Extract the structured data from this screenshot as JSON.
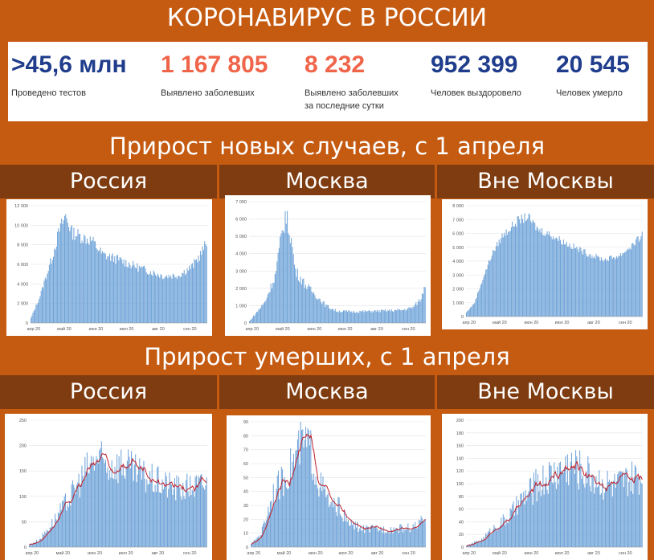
{
  "title": "КОРОНАВИРУС В РОССИИ",
  "stats": [
    {
      "value": ">45,6 млн",
      "label": "Проведено тестов",
      "color": "#1f3d8c"
    },
    {
      "value": "1 167 805",
      "label": "Выявлено заболевших",
      "color": "#f0654a"
    },
    {
      "value": "8 232",
      "label": "Выявлено заболевших\nза последние сутки",
      "color": "#f0654a"
    },
    {
      "value": "952 399",
      "label": "Человек выздоровело",
      "color": "#1f3d8c"
    },
    {
      "value": "20 545",
      "label": "Человек умерло",
      "color": "#1f3d8c"
    }
  ],
  "section_cases": "Прирост новых случаев, с 1 апреля",
  "section_deaths": "Прирост умерших, с 1 апреля",
  "regions": [
    "Россия",
    "Москва",
    "Вне Москвы"
  ],
  "colors": {
    "bar": "#6fa3d8",
    "avg": "#c0202a",
    "band": "#c55a11",
    "region_bg": "#7f3c10"
  },
  "chart_data": [
    {
      "type": "bar",
      "title": "Россия",
      "ylim": [
        0,
        12000
      ],
      "yticks": [
        "0",
        "2 000",
        "4 000",
        "6 000",
        "8 000",
        "10 000",
        "12 000"
      ],
      "xticks": [
        "апр 20",
        "май 20",
        "июн 20",
        "июл 20",
        "авг 20",
        "сен 20"
      ],
      "anchors": [
        [
          0,
          500
        ],
        [
          8,
          2500
        ],
        [
          20,
          6500
        ],
        [
          28,
          9500
        ],
        [
          34,
          11000
        ],
        [
          40,
          9300
        ],
        [
          50,
          8800
        ],
        [
          60,
          8400
        ],
        [
          70,
          7000
        ],
        [
          85,
          6500
        ],
        [
          110,
          5500
        ],
        [
          130,
          4800
        ],
        [
          145,
          4900
        ],
        [
          158,
          5800
        ],
        [
          166,
          7000
        ],
        [
          172,
          8200
        ]
      ],
      "noise": 0.08
    },
    {
      "type": "bar",
      "title": "Москва",
      "ylim": [
        0,
        7000
      ],
      "yticks": [
        "0",
        "1 000",
        "2 000",
        "3 000",
        "4 000",
        "5 000",
        "6 000",
        "7 000"
      ],
      "xticks": [
        "апр 20",
        "май 20",
        "июн 20",
        "июл 20",
        "авг 20",
        "сен 20"
      ],
      "anchors": [
        [
          0,
          100
        ],
        [
          15,
          1200
        ],
        [
          25,
          2700
        ],
        [
          30,
          4500
        ],
        [
          35,
          6200
        ],
        [
          40,
          5200
        ],
        [
          45,
          3000
        ],
        [
          55,
          2200
        ],
        [
          65,
          1600
        ],
        [
          75,
          1000
        ],
        [
          85,
          700
        ],
        [
          100,
          650
        ],
        [
          130,
          700
        ],
        [
          150,
          750
        ],
        [
          160,
          900
        ],
        [
          168,
          1400
        ],
        [
          172,
          2300
        ]
      ],
      "noise": 0.12
    },
    {
      "type": "bar",
      "title": "Вне Москвы",
      "ylim": [
        0,
        8000
      ],
      "yticks": [
        "0",
        "1 000",
        "2 000",
        "3 000",
        "4 000",
        "5 000",
        "6 000",
        "7 000",
        "8 000"
      ],
      "xticks": [
        "апр 20",
        "май 20",
        "июн 20",
        "июл 20",
        "авг 20",
        "сен 20"
      ],
      "anchors": [
        [
          0,
          300
        ],
        [
          8,
          1000
        ],
        [
          15,
          2500
        ],
        [
          25,
          4500
        ],
        [
          35,
          5800
        ],
        [
          50,
          6900
        ],
        [
          60,
          7200
        ],
        [
          70,
          6300
        ],
        [
          80,
          6000
        ],
        [
          100,
          5200
        ],
        [
          120,
          4500
        ],
        [
          135,
          4100
        ],
        [
          150,
          4400
        ],
        [
          165,
          5300
        ],
        [
          172,
          5900
        ]
      ],
      "noise": 0.05
    },
    {
      "type": "bar",
      "title": "Россия",
      "ylim": [
        0,
        250
      ],
      "yticks": [
        "0",
        "50",
        "100",
        "150",
        "200",
        "250"
      ],
      "xticks": [
        "апр 20",
        "май 20",
        "июн 20",
        "июл 20",
        "авг 20",
        "сен 20"
      ],
      "anchors": [
        [
          0,
          5
        ],
        [
          10,
          15
        ],
        [
          25,
          55
        ],
        [
          40,
          100
        ],
        [
          55,
          150
        ],
        [
          65,
          175
        ],
        [
          75,
          160
        ],
        [
          90,
          165
        ],
        [
          100,
          150
        ],
        [
          115,
          135
        ],
        [
          130,
          125
        ],
        [
          145,
          115
        ],
        [
          160,
          120
        ],
        [
          172,
          125
        ]
      ],
      "noise": 0.25,
      "avg": true
    },
    {
      "type": "bar",
      "title": "Москва",
      "ylim": [
        0,
        90
      ],
      "yticks": [
        "0",
        "10",
        "20",
        "30",
        "40",
        "50",
        "60",
        "70",
        "80",
        "90"
      ],
      "xticks": [
        "апр 20",
        "май 20",
        "июн 20",
        "июл 20",
        "авг 20",
        "сен 20"
      ],
      "anchors": [
        [
          0,
          2
        ],
        [
          10,
          10
        ],
        [
          22,
          40
        ],
        [
          32,
          48
        ],
        [
          42,
          62
        ],
        [
          50,
          75
        ],
        [
          58,
          72
        ],
        [
          65,
          50
        ],
        [
          72,
          40
        ],
        [
          80,
          28
        ],
        [
          86,
          30
        ],
        [
          95,
          18
        ],
        [
          110,
          13
        ],
        [
          140,
          13
        ],
        [
          160,
          14
        ],
        [
          172,
          20
        ]
      ],
      "noise": 0.25,
      "avg": true
    },
    {
      "type": "bar",
      "title": "Вне Москвы",
      "ylim": [
        0,
        200
      ],
      "yticks": [
        "0",
        "20",
        "40",
        "60",
        "80",
        "100",
        "120",
        "140",
        "160",
        "180",
        "200"
      ],
      "xticks": [
        "апр 20",
        "май 20",
        "июн 20",
        "июл 20",
        "авг 20",
        "сен 20"
      ],
      "anchors": [
        [
          0,
          2
        ],
        [
          15,
          12
        ],
        [
          30,
          35
        ],
        [
          40,
          45
        ],
        [
          55,
          75
        ],
        [
          70,
          100
        ],
        [
          85,
          115
        ],
        [
          100,
          130
        ],
        [
          115,
          120
        ],
        [
          130,
          105
        ],
        [
          145,
          95
        ],
        [
          160,
          105
        ],
        [
          172,
          110
        ]
      ],
      "noise": 0.28,
      "avg": true
    }
  ]
}
